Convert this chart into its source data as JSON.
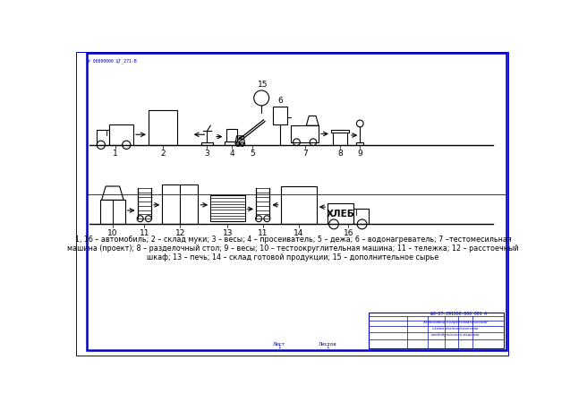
{
  "bg_color": "#ffffff",
  "line_color": "#000000",
  "border_color": "#0000bb",
  "caption_line1": "1, 16 – автомобиль; 2 – склад муки; 3 – весы; 4 – просеиватель; 5 – дежа; 6 – водонагреватель; 7 –тестомесильная",
  "caption_line2": "машина (проект); 8 – разделочный стол; 9 – весы; 10 – тестоокруглительная машина; 11 – тележка; 12 – расстоечный",
  "caption_line3": "шкаф; 13 – печь; 14 – склад готовой продукции; 15 – дополнительное сырье"
}
